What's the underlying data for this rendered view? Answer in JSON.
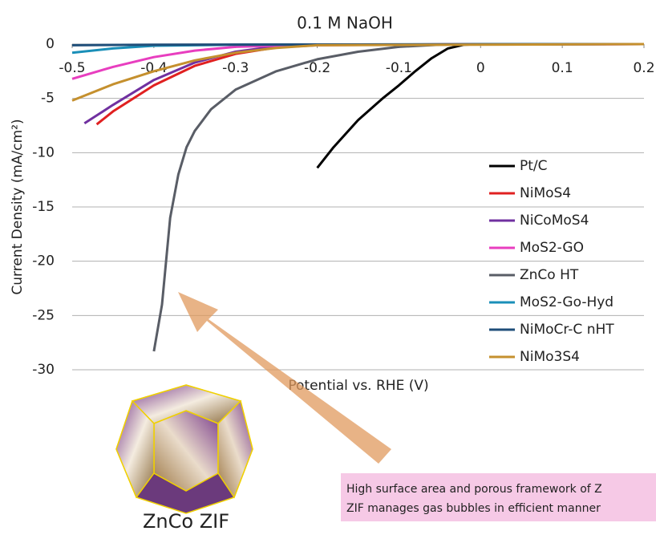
{
  "chart_data": {
    "type": "line",
    "title": "0.1 M NaOH",
    "x_label": "Potential vs. RHE (V)",
    "y_label": "Current Density (mA/cm²)",
    "xlim": [
      -0.5,
      0.2
    ],
    "xticks": [
      -0.5,
      -0.4,
      -0.3,
      -0.2,
      -0.1,
      0,
      0.1,
      0.2
    ],
    "ylim": [
      -30,
      0
    ],
    "yticks": [
      0,
      -5,
      -10,
      -15,
      -20,
      -25,
      -30
    ],
    "grid": true,
    "legend": "right",
    "series": [
      {
        "name": "Pt/C",
        "color": "#000000",
        "x": [
          -0.2,
          -0.18,
          -0.15,
          -0.12,
          -0.1,
          -0.08,
          -0.06,
          -0.04,
          -0.02,
          0,
          0.1,
          0.2
        ],
        "values": [
          -11.4,
          -9.5,
          -7,
          -5,
          -3.8,
          -2.5,
          -1.3,
          -0.4,
          -0.05,
          0,
          0,
          0
        ]
      },
      {
        "name": "NiMoS4",
        "color": "#e02020",
        "x": [
          -0.47,
          -0.45,
          -0.4,
          -0.35,
          -0.3,
          -0.25,
          -0.2,
          0,
          0.2
        ],
        "values": [
          -7.4,
          -6.2,
          -3.8,
          -2,
          -0.9,
          -0.3,
          -0.1,
          0,
          0
        ]
      },
      {
        "name": "NiCoMoS4",
        "color": "#7030a0",
        "x": [
          -0.485,
          -0.45,
          -0.4,
          -0.35,
          -0.3,
          -0.25,
          -0.2,
          0.2
        ],
        "values": [
          -7.3,
          -5.6,
          -3.3,
          -1.7,
          -0.7,
          -0.2,
          -0.05,
          0
        ]
      },
      {
        "name": "MoS2-GO",
        "color": "#e83ebf",
        "x": [
          -0.5,
          -0.45,
          -0.4,
          -0.35,
          -0.3,
          -0.2,
          0.2
        ],
        "values": [
          -3.2,
          -2.1,
          -1.2,
          -0.6,
          -0.25,
          -0.05,
          0
        ]
      },
      {
        "name": "ZnCo HT",
        "color": "#595d66",
        "x": [
          -0.4,
          -0.39,
          -0.38,
          -0.37,
          -0.36,
          -0.35,
          -0.33,
          -0.3,
          -0.25,
          -0.2,
          -0.15,
          -0.1,
          -0.05,
          0,
          0.2
        ],
        "values": [
          -28.3,
          -24,
          -16,
          -12,
          -9.5,
          -8,
          -6,
          -4.2,
          -2.5,
          -1.4,
          -0.7,
          -0.25,
          -0.05,
          0,
          0
        ]
      },
      {
        "name": "MoS2-Go-Hyd",
        "color": "#1a8fb8",
        "x": [
          -0.5,
          -0.45,
          -0.4,
          -0.3,
          0.2
        ],
        "values": [
          -0.8,
          -0.4,
          -0.15,
          -0.05,
          0
        ]
      },
      {
        "name": "NiMoCr-C nHT",
        "color": "#1f4e79",
        "x": [
          -0.5,
          -0.4,
          0.2
        ],
        "values": [
          -0.1,
          -0.05,
          0
        ]
      },
      {
        "name": "NiMo3S4",
        "color": "#c5902e",
        "x": [
          -0.5,
          -0.45,
          -0.4,
          -0.35,
          -0.3,
          -0.25,
          -0.2,
          0.2
        ],
        "values": [
          -5.2,
          -3.7,
          -2.5,
          -1.5,
          -0.8,
          -0.35,
          -0.1,
          0
        ]
      }
    ],
    "annotations": [
      "ZnCo ZIF",
      "High surface area and porous framework of Z",
      "ZIF manages gas bubbles in efficient manner"
    ]
  }
}
